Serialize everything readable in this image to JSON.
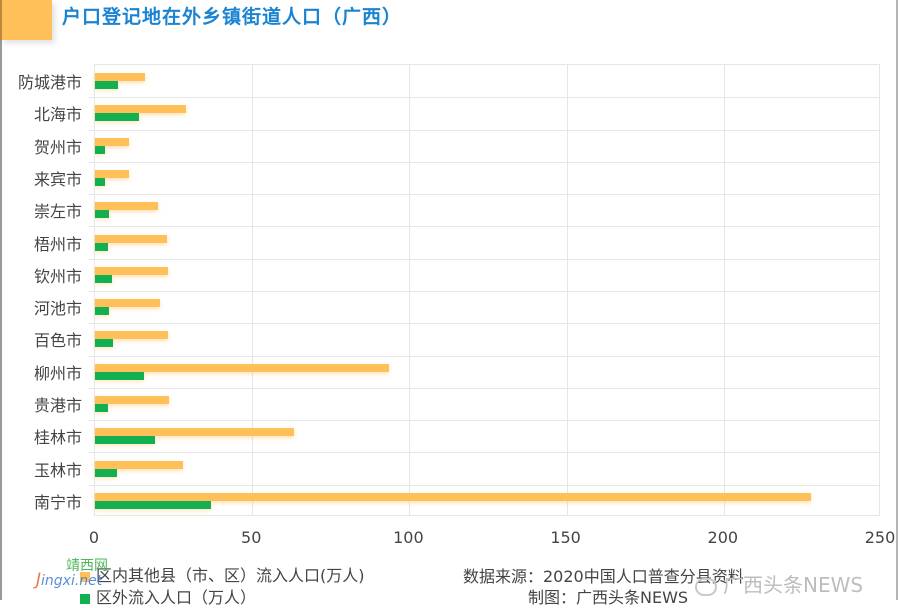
{
  "header": {
    "title": "户口登记地在外乡镇街道人口（广西）",
    "accent_color": "#FFC05A",
    "title_color": "#1a84d2"
  },
  "chart_data": {
    "type": "bar",
    "orientation": "horizontal",
    "title": "户口登记地在外乡镇街道人口（广西）",
    "xlabel": "",
    "ylabel": "",
    "xlim": [
      0,
      250
    ],
    "xticks": [
      0,
      50,
      100,
      150,
      200,
      250
    ],
    "grid": true,
    "legend_position": "bottom-left",
    "categories": [
      "防城港市",
      "北海市",
      "贺州市",
      "来宾市",
      "崇左市",
      "梧州市",
      "钦州市",
      "河池市",
      "百色市",
      "柳州市",
      "贵港市",
      "桂林市",
      "玉林市",
      "南宁市"
    ],
    "series": [
      {
        "name": "区内其他县（市、区）流入人口(万人)",
        "color": "#FFC05A",
        "values": [
          15.9,
          28.8,
          10.9,
          10.9,
          20.1,
          23.0,
          23.3,
          20.8,
          23.3,
          93.4,
          23.6,
          63.4,
          28.1,
          227.8
        ]
      },
      {
        "name": "区外流入人口（万人）",
        "color": "#12B050",
        "values": [
          7.4,
          13.9,
          3.3,
          3.3,
          4.5,
          4.0,
          5.4,
          4.6,
          5.6,
          15.5,
          4.2,
          19.2,
          7.0,
          36.9
        ]
      }
    ]
  },
  "legend": [
    {
      "label": "区内其他县（市、区）流入人口(万人)",
      "color": "#FFC05A"
    },
    {
      "label": "区外流入人口（万人）",
      "color": "#12B050"
    }
  ],
  "footer": {
    "source": "数据来源：2020中国人口普查分县资料",
    "credit": "制图：广西头条NEWS"
  },
  "watermarks": {
    "site_cn": "靖西网",
    "site_url_j": "J",
    "site_url_rest": "ingxi.net",
    "brand": "广西头条NEWS"
  }
}
